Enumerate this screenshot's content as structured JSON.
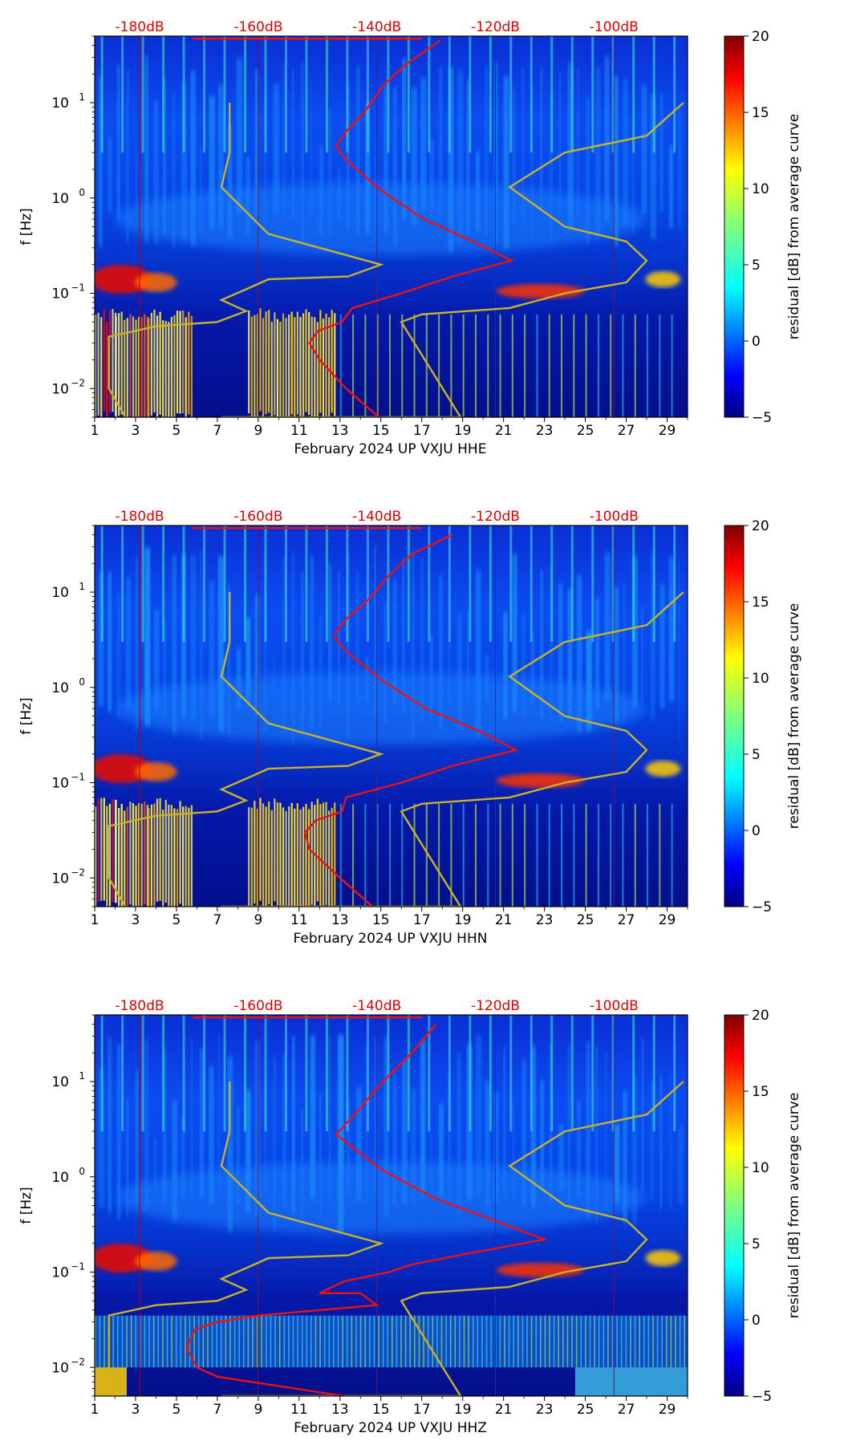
{
  "colors": {
    "dB_label": "#e00000",
    "red_curve": "#ee1111",
    "nhnm_curve": "#c8b226",
    "frame": "#000000"
  },
  "chart_data": [
    {
      "type": "heatmap",
      "title": "",
      "xlabel": "February 2024 UP VXJU  HHE",
      "ylabel": "f [Hz]",
      "x_range": [
        1,
        30
      ],
      "x_ticks": [
        "1",
        "3",
        "5",
        "7",
        "9",
        "11",
        "13",
        "15",
        "17",
        "19",
        "21",
        "23",
        "25",
        "27",
        "29"
      ],
      "y_scale": "log",
      "y_range_hz": [
        0.005,
        50
      ],
      "y_ticks": [
        {
          "hz": 0.01,
          "base": "10",
          "exp": "−2"
        },
        {
          "hz": 0.1,
          "base": "10",
          "exp": "−1"
        },
        {
          "hz": 1,
          "base": "10",
          "exp": "0"
        },
        {
          "hz": 10,
          "base": "10",
          "exp": "1"
        }
      ],
      "top_axis_labels": [
        "-180dB",
        "-160dB",
        "-140dB",
        "-120dB",
        "-100dB"
      ],
      "top_axis_day": [
        3.2,
        9,
        14.8,
        20.6,
        26.4
      ],
      "colorbar": {
        "label": "residual [dB] from average curve",
        "range": [
          -5,
          20
        ],
        "ticks": [
          "−5",
          "0",
          "5",
          "10",
          "15",
          "20"
        ]
      },
      "red_curve": {
        "name": "average PSD curve",
        "day": [
          14.9,
          13.3,
          12.0,
          11.5,
          11.9,
          13.1,
          13.6,
          16.0,
          18.5,
          21.4,
          19.5,
          17.1,
          15.0,
          13.3,
          12.8,
          13.3,
          14.2,
          15.1,
          16.2,
          17.9
        ],
        "hz": [
          0.005,
          0.01,
          0.02,
          0.03,
          0.04,
          0.05,
          0.07,
          0.1,
          0.15,
          0.22,
          0.35,
          0.6,
          1.2,
          2.5,
          3.5,
          5,
          8,
          15,
          25,
          45
        ]
      },
      "yellow_curve": {
        "name": "noise model",
        "day": [
          2.5,
          1.7,
          1.7,
          1.7,
          4.0,
          7.0,
          8.4,
          7.2,
          8.4,
          9.5,
          13.4,
          15.0,
          9.5,
          7.2,
          7.6,
          7.6,
          7.2,
          16.0,
          18.9,
          16.0,
          17.0,
          21.3,
          24.0,
          27.0,
          28.0,
          27.0,
          24.0,
          21.3,
          24.0,
          28.0,
          29.8
        ],
        "hz": [
          0.005,
          0.01,
          0.02,
          0.035,
          0.045,
          0.05,
          0.065,
          0.085,
          0.11,
          0.14,
          0.15,
          0.2,
          0.42,
          1.3,
          3,
          10,
          0.005,
          0.005,
          0.005,
          0.05,
          0.06,
          0.07,
          0.1,
          0.13,
          0.22,
          0.35,
          0.5,
          1.3,
          3,
          4.5,
          10
        ]
      }
    },
    {
      "type": "heatmap",
      "title": "",
      "xlabel": "February 2024 UP VXJU  HHN",
      "ylabel": "f [Hz]",
      "x_range": [
        1,
        30
      ],
      "x_ticks": [
        "1",
        "3",
        "5",
        "7",
        "9",
        "11",
        "13",
        "15",
        "17",
        "19",
        "21",
        "23",
        "25",
        "27",
        "29"
      ],
      "y_scale": "log",
      "y_range_hz": [
        0.005,
        50
      ],
      "y_ticks": [
        {
          "hz": 0.01,
          "base": "10",
          "exp": "−2"
        },
        {
          "hz": 0.1,
          "base": "10",
          "exp": "−1"
        },
        {
          "hz": 1,
          "base": "10",
          "exp": "0"
        },
        {
          "hz": 10,
          "base": "10",
          "exp": "1"
        }
      ],
      "top_axis_labels": [
        "-180dB",
        "-160dB",
        "-140dB",
        "-120dB",
        "-100dB"
      ],
      "top_axis_day": [
        3.2,
        9,
        14.8,
        20.6,
        26.4
      ],
      "colorbar": {
        "label": "residual [dB] from average curve",
        "range": [
          -5,
          20
        ],
        "ticks": [
          "−5",
          "0",
          "5",
          "10",
          "15",
          "20"
        ]
      },
      "red_curve": {
        "name": "average PSD curve",
        "day": [
          14.6,
          13.0,
          11.5,
          11.3,
          11.8,
          13.1,
          13.3,
          16.0,
          18.5,
          21.6,
          19.8,
          17.2,
          15.0,
          13.2,
          12.7,
          13.2,
          14.3,
          15.4,
          16.5,
          18.5
        ],
        "hz": [
          0.005,
          0.01,
          0.02,
          0.03,
          0.04,
          0.05,
          0.07,
          0.1,
          0.15,
          0.22,
          0.35,
          0.6,
          1.2,
          2.5,
          3.5,
          5,
          8,
          15,
          25,
          40
        ]
      },
      "yellow_curve": {
        "name": "noise model",
        "day": [
          2.5,
          1.7,
          1.7,
          1.7,
          4.0,
          7.0,
          8.4,
          7.2,
          8.4,
          9.5,
          13.4,
          15.0,
          9.5,
          7.2,
          7.6,
          7.6,
          7.2,
          16.0,
          18.9,
          16.0,
          17.0,
          21.3,
          24.0,
          27.0,
          28.0,
          27.0,
          24.0,
          21.3,
          24.0,
          28.0,
          29.8
        ],
        "hz": [
          0.005,
          0.01,
          0.02,
          0.035,
          0.045,
          0.05,
          0.065,
          0.085,
          0.11,
          0.14,
          0.15,
          0.2,
          0.42,
          1.3,
          3,
          10,
          0.005,
          0.005,
          0.005,
          0.05,
          0.06,
          0.07,
          0.1,
          0.13,
          0.22,
          0.35,
          0.5,
          1.3,
          3,
          4.5,
          10
        ]
      }
    },
    {
      "type": "heatmap",
      "title": "",
      "xlabel": "February 2024 UP VXJU  HHZ",
      "ylabel": "f [Hz]",
      "x_range": [
        1,
        30
      ],
      "x_ticks": [
        "1",
        "3",
        "5",
        "7",
        "9",
        "11",
        "13",
        "15",
        "17",
        "19",
        "21",
        "23",
        "25",
        "27",
        "29"
      ],
      "y_scale": "log",
      "y_range_hz": [
        0.005,
        50
      ],
      "y_ticks": [
        {
          "hz": 0.01,
          "base": "10",
          "exp": "−2"
        },
        {
          "hz": 0.1,
          "base": "10",
          "exp": "−1"
        },
        {
          "hz": 1,
          "base": "10",
          "exp": "0"
        },
        {
          "hz": 10,
          "base": "10",
          "exp": "1"
        }
      ],
      "top_axis_labels": [
        "-180dB",
        "-160dB",
        "-140dB",
        "-120dB",
        "-100dB"
      ],
      "top_axis_day": [
        3.2,
        9,
        14.8,
        20.6,
        26.4
      ],
      "colorbar": {
        "label": "residual [dB] from average curve",
        "range": [
          -5,
          20
        ],
        "ticks": [
          "−5",
          "0",
          "5",
          "10",
          "15",
          "20"
        ]
      },
      "red_curve": {
        "name": "average PSD curve",
        "day": [
          13.2,
          7.0,
          6.0,
          5.5,
          5.9,
          7.0,
          9.0,
          14.8,
          14.0,
          12.0,
          13.2,
          15.4,
          16.5,
          18.8,
          23.0,
          20.5,
          17.6,
          15.0,
          12.8,
          13.5,
          14.2,
          15.1,
          16.5,
          17.7
        ],
        "hz": [
          0.005,
          0.008,
          0.01,
          0.016,
          0.025,
          0.03,
          0.035,
          0.045,
          0.06,
          0.06,
          0.08,
          0.1,
          0.12,
          0.15,
          0.22,
          0.35,
          0.6,
          1.2,
          2.8,
          4,
          6,
          10,
          20,
          40
        ]
      },
      "yellow_curve": {
        "name": "noise model",
        "day": [
          2.5,
          1.7,
          1.7,
          1.7,
          4.0,
          7.0,
          8.4,
          7.2,
          8.4,
          9.5,
          13.4,
          15.0,
          9.5,
          7.2,
          7.6,
          7.6,
          7.2,
          16.0,
          18.9,
          16.0,
          17.0,
          21.3,
          24.0,
          27.0,
          28.0,
          27.0,
          24.0,
          21.3,
          24.0,
          28.0,
          29.8
        ],
        "hz": [
          0.005,
          0.01,
          0.02,
          0.035,
          0.045,
          0.05,
          0.065,
          0.085,
          0.11,
          0.14,
          0.15,
          0.2,
          0.42,
          1.3,
          3,
          10,
          0.005,
          0.005,
          0.005,
          0.05,
          0.06,
          0.07,
          0.1,
          0.13,
          0.22,
          0.35,
          0.5,
          1.3,
          3,
          4.5,
          10
        ]
      }
    }
  ]
}
